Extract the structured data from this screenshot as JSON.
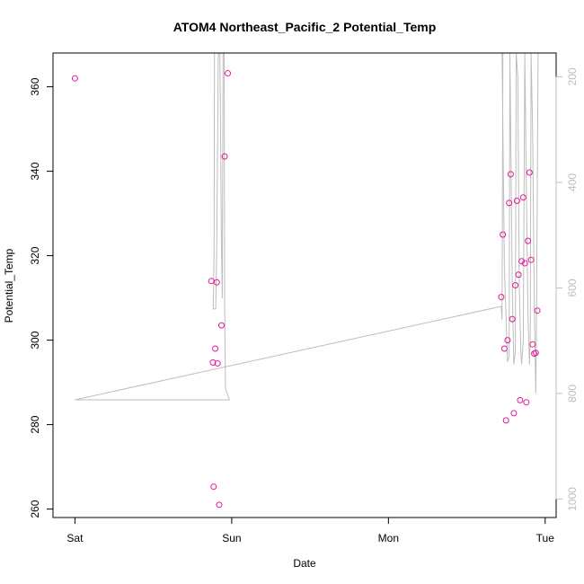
{
  "chart_data": {
    "type": "scatter",
    "title": "ATOM4 Northeast_Pacific_2 Potential_Temp",
    "xlabel": "Date",
    "ylabel": "Potential_Temp",
    "x_ticks": [
      {
        "label": "Sat",
        "value": 0
      },
      {
        "label": "Sun",
        "value": 1
      },
      {
        "label": "Mon",
        "value": 2
      },
      {
        "label": "Tue",
        "value": 3
      }
    ],
    "xlim": [
      -0.14,
      3.07
    ],
    "ylim": [
      258,
      368
    ],
    "y_ticks": [
      260,
      280,
      300,
      320,
      340,
      360
    ],
    "right_axis": {
      "ylim": [
        1035,
        155
      ],
      "ticks": [
        200,
        400,
        600,
        800,
        1000
      ],
      "color": "#bdbdbd"
    },
    "grid": false,
    "point_color": "#e8179a",
    "line_color": "#bdbdbd",
    "points": [
      {
        "x": 0.0,
        "y": 362.0
      },
      {
        "x": 0.87,
        "y": 314.0
      },
      {
        "x": 0.88,
        "y": 294.7
      },
      {
        "x": 0.885,
        "y": 265.3
      },
      {
        "x": 0.895,
        "y": 298.0
      },
      {
        "x": 0.905,
        "y": 313.7
      },
      {
        "x": 0.91,
        "y": 294.5
      },
      {
        "x": 0.92,
        "y": 261.0
      },
      {
        "x": 0.935,
        "y": 303.5
      },
      {
        "x": 0.955,
        "y": 343.5
      },
      {
        "x": 0.975,
        "y": 363.2
      },
      {
        "x": 2.72,
        "y": 310.2
      },
      {
        "x": 2.73,
        "y": 325.0
      },
      {
        "x": 2.74,
        "y": 298.0
      },
      {
        "x": 2.75,
        "y": 281.0
      },
      {
        "x": 2.76,
        "y": 300.0
      },
      {
        "x": 2.77,
        "y": 332.5
      },
      {
        "x": 2.78,
        "y": 339.3
      },
      {
        "x": 2.79,
        "y": 305.0
      },
      {
        "x": 2.8,
        "y": 282.7
      },
      {
        "x": 2.81,
        "y": 313.0
      },
      {
        "x": 2.82,
        "y": 333.0
      },
      {
        "x": 2.83,
        "y": 315.5
      },
      {
        "x": 2.84,
        "y": 285.8
      },
      {
        "x": 2.85,
        "y": 318.7
      },
      {
        "x": 2.86,
        "y": 333.8
      },
      {
        "x": 2.87,
        "y": 318.2
      },
      {
        "x": 2.88,
        "y": 285.3
      },
      {
        "x": 2.89,
        "y": 323.5
      },
      {
        "x": 2.9,
        "y": 339.7
      },
      {
        "x": 2.91,
        "y": 319.0
      },
      {
        "x": 2.92,
        "y": 299.0
      },
      {
        "x": 2.93,
        "y": 296.8
      },
      {
        "x": 2.94,
        "y": 297.0
      },
      {
        "x": 2.95,
        "y": 307.0
      }
    ],
    "line_series": [
      [
        [
          0.0,
          812
        ],
        [
          0.985,
          812
        ],
        [
          0.96,
          790
        ],
        [
          0.955,
          620
        ],
        [
          0.952,
          155
        ]
      ],
      [
        [
          0.89,
          155
        ],
        [
          0.888,
          520
        ],
        [
          0.885,
          600
        ],
        [
          0.882,
          640
        ],
        [
          0.898,
          640
        ],
        [
          0.905,
          520
        ],
        [
          0.915,
          155
        ]
      ],
      [
        [
          0.925,
          155
        ],
        [
          0.935,
          520
        ],
        [
          0.94,
          620
        ],
        [
          0.945,
          155
        ]
      ],
      [
        [
          0.0,
          812
        ],
        [
          2.72,
          635
        ],
        [
          2.725,
          660
        ],
        [
          2.73,
          155
        ]
      ],
      [
        [
          2.725,
          155
        ],
        [
          2.74,
          560
        ],
        [
          2.755,
          700
        ],
        [
          2.76,
          740
        ],
        [
          2.77,
          730
        ],
        [
          2.775,
          155
        ],
        [
          2.78,
          300
        ],
        [
          2.79,
          600
        ],
        [
          2.8,
          745
        ],
        [
          2.81,
          720
        ],
        [
          2.815,
          155
        ],
        [
          2.825,
          200
        ],
        [
          2.835,
          600
        ],
        [
          2.845,
          720
        ],
        [
          2.85,
          745
        ],
        [
          2.86,
          700
        ],
        [
          2.87,
          155
        ],
        [
          2.88,
          420
        ],
        [
          2.89,
          650
        ],
        [
          2.9,
          745
        ],
        [
          2.905,
          690
        ],
        [
          2.91,
          155
        ],
        [
          2.92,
          300
        ],
        [
          2.93,
          620
        ],
        [
          2.94,
          800
        ],
        [
          2.945,
          650
        ],
        [
          2.955,
          155
        ]
      ]
    ]
  }
}
